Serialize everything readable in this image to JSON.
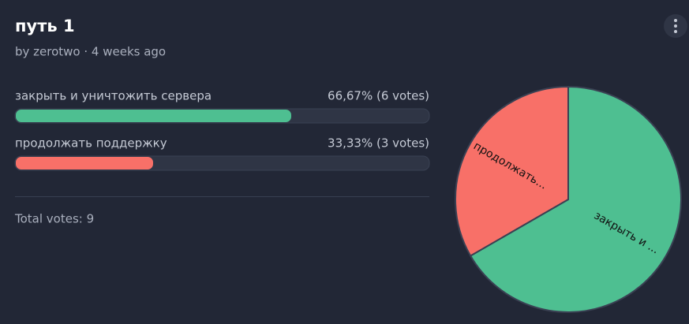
{
  "header": {
    "title": "путь 1",
    "byline": "by zerotwo · 4 weeks ago"
  },
  "chart_data": [
    {
      "type": "bar",
      "orientation": "horizontal",
      "categories": [
        "закрыть и уничтожить сервера",
        "продолжать поддержку"
      ],
      "values": [
        66.67,
        33.33
      ],
      "value_labels": [
        "66,67% (6 votes)",
        "33,33% (3 votes)"
      ],
      "xlim": [
        0,
        100
      ],
      "colors": [
        "#4ebf91",
        "#f87068"
      ]
    },
    {
      "type": "pie",
      "labels": [
        "закрыть и ...",
        "продолжать..."
      ],
      "values": [
        6,
        3
      ],
      "colors": [
        "#4ebf91",
        "#f87068"
      ]
    }
  ],
  "footer": {
    "total": "Total votes: 9"
  }
}
